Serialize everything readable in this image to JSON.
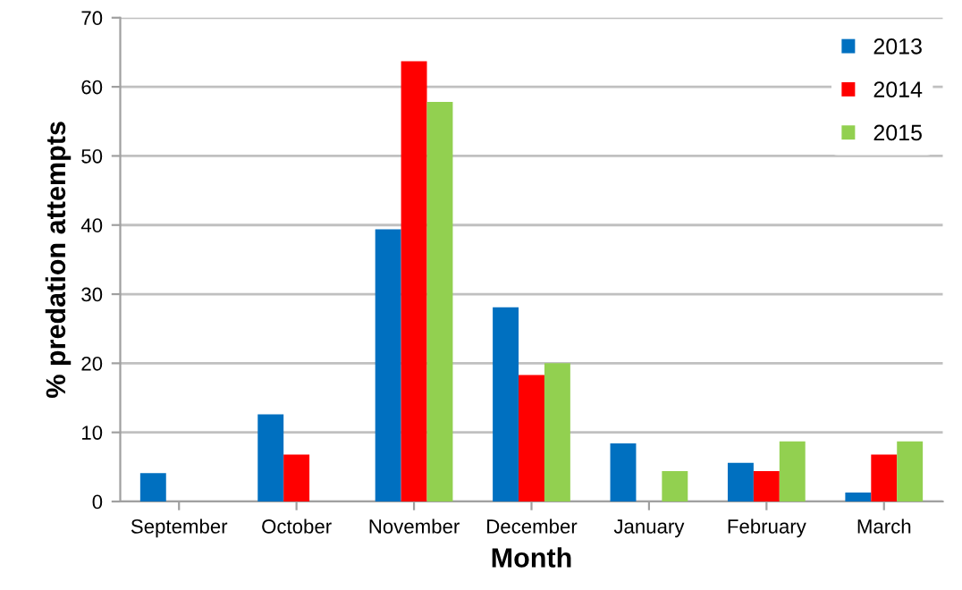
{
  "chart_data": {
    "type": "bar",
    "xlabel": "Month",
    "ylabel": "% predation attempts",
    "categories": [
      "September",
      "October",
      "November",
      "December",
      "January",
      "February",
      "March"
    ],
    "series": [
      {
        "name": "2013",
        "color": "#0070c0",
        "values": [
          4.1,
          12.6,
          39.4,
          28.1,
          8.4,
          5.6,
          1.3
        ]
      },
      {
        "name": "2014",
        "color": "#ff0000",
        "values": [
          0,
          6.8,
          63.7,
          18.3,
          0,
          4.4,
          6.8
        ]
      },
      {
        "name": "2015",
        "color": "#92d050",
        "values": [
          0,
          0,
          57.8,
          20.0,
          4.4,
          8.7,
          8.7
        ]
      }
    ],
    "ylim": [
      0,
      70
    ],
    "yticks": [
      0,
      10,
      20,
      30,
      40,
      50,
      60,
      70
    ],
    "grid": "y",
    "legend": "top right"
  }
}
